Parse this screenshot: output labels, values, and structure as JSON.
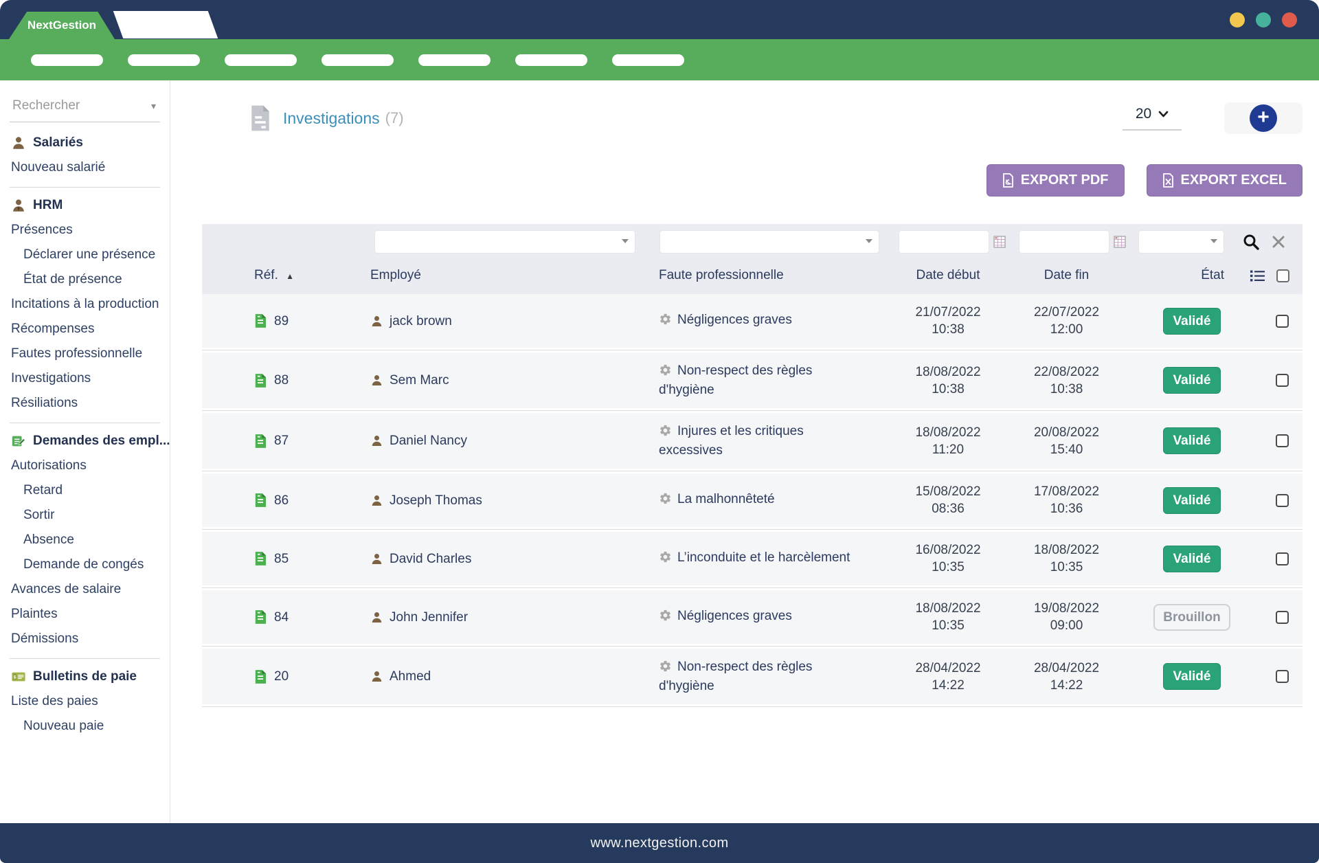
{
  "window": {
    "brand": "NextGestion",
    "traffic_light_colors": [
      "#f1c84d",
      "#46b29b",
      "#e15b4d"
    ]
  },
  "navbar": {
    "pill_count": 7
  },
  "sidebar": {
    "search_placeholder": "Rechercher",
    "items": [
      {
        "type": "section",
        "icon": "user",
        "label": "Salariés"
      },
      {
        "type": "item",
        "label": "Nouveau salarié"
      },
      {
        "type": "divider"
      },
      {
        "type": "section",
        "icon": "user-tie",
        "label": "HRM"
      },
      {
        "type": "item",
        "label": "Présences"
      },
      {
        "type": "subitem",
        "label": "Déclarer une présence"
      },
      {
        "type": "subitem",
        "label": "État de présence"
      },
      {
        "type": "item",
        "label": "Incitations à la production"
      },
      {
        "type": "item",
        "label": "Récompenses"
      },
      {
        "type": "item",
        "label": "Fautes professionnelle"
      },
      {
        "type": "item",
        "label": "Investigations"
      },
      {
        "type": "item",
        "label": "Résiliations"
      },
      {
        "type": "divider"
      },
      {
        "type": "section",
        "icon": "request",
        "label": "Demandes des empl..."
      },
      {
        "type": "item",
        "label": "Autorisations"
      },
      {
        "type": "subitem",
        "label": "Retard"
      },
      {
        "type": "subitem",
        "label": "Sortir"
      },
      {
        "type": "subitem",
        "label": "Absence"
      },
      {
        "type": "subitem",
        "label": "Demande de congés"
      },
      {
        "type": "item",
        "label": "Avances de salaire"
      },
      {
        "type": "item",
        "label": "Plaintes"
      },
      {
        "type": "item",
        "label": "Démissions"
      },
      {
        "type": "divider"
      },
      {
        "type": "section",
        "icon": "payslip",
        "label": "Bulletins de paie"
      },
      {
        "type": "item",
        "label": "Liste des paies"
      },
      {
        "type": "subitem",
        "label": "Nouveau paie"
      }
    ]
  },
  "header": {
    "title": "Investigations",
    "count": "(7)",
    "page_size": "20"
  },
  "toolbar": {
    "export_pdf_label": "EXPORT PDF",
    "export_excel_label": "EXPORT EXCEL"
  },
  "table": {
    "headers": [
      "Réf.",
      "Employé",
      "Faute professionnelle",
      "Date début",
      "Date fin",
      "État"
    ],
    "rows": [
      {
        "ref": "89",
        "employee": "jack brown",
        "fault": "Négligences graves",
        "start_date": "21/07/2022",
        "start_time": "10:38",
        "end_date": "22/07/2022",
        "end_time": "12:00",
        "status": "Validé",
        "status_type": "success"
      },
      {
        "ref": "88",
        "employee": "Sem Marc",
        "fault": "Non-respect des règles d'hygiène",
        "start_date": "18/08/2022",
        "start_time": "10:38",
        "end_date": "22/08/2022",
        "end_time": "10:38",
        "status": "Validé",
        "status_type": "success"
      },
      {
        "ref": "87",
        "employee": "Daniel Nancy",
        "fault": "Injures et les critiques excessives",
        "start_date": "18/08/2022",
        "start_time": "11:20",
        "end_date": "20/08/2022",
        "end_time": "15:40",
        "status": "Validé",
        "status_type": "success"
      },
      {
        "ref": "86",
        "employee": "Joseph Thomas",
        "fault": "La malhonnêteté",
        "start_date": "15/08/2022",
        "start_time": "08:36",
        "end_date": "17/08/2022",
        "end_time": "10:36",
        "status": "Validé",
        "status_type": "success"
      },
      {
        "ref": "85",
        "employee": "David Charles",
        "fault": "L’inconduite et le harcèlement",
        "start_date": "16/08/2022",
        "start_time": "10:35",
        "end_date": "18/08/2022",
        "end_time": "10:35",
        "status": "Validé",
        "status_type": "success"
      },
      {
        "ref": "84",
        "employee": "John Jennifer",
        "fault": "Négligences graves",
        "start_date": "18/08/2022",
        "start_time": "10:35",
        "end_date": "19/08/2022",
        "end_time": "09:00",
        "status": "Brouillon",
        "status_type": "draft"
      },
      {
        "ref": "20",
        "employee": "Ahmed",
        "fault": "Non-respect des règles d'hygiène",
        "start_date": "28/04/2022",
        "start_time": "14:22",
        "end_date": "28/04/2022",
        "end_time": "14:22",
        "status": "Validé",
        "status_type": "success"
      }
    ]
  },
  "footer": {
    "url": "www.nextgestion.com"
  },
  "colors": {
    "navy": "#263a5e",
    "green": "#57ad5b",
    "purple": "#9679b7",
    "badge_success": "#29a377",
    "link": "#3a8fb7"
  }
}
